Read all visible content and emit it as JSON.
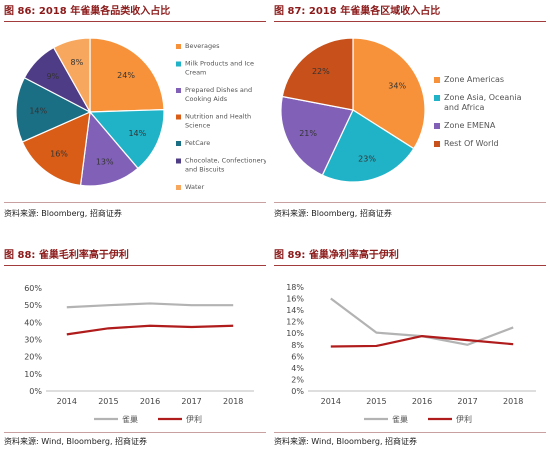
{
  "figures": [
    {
      "id": "fig86",
      "label": "图 86:",
      "title": "2018 年雀巢各品类收入占比",
      "source": "资料来源: Bloomberg, 招商证券"
    },
    {
      "id": "fig87",
      "label": "图 87:",
      "title": "2018 年雀巢各区域收入占比",
      "source": "资料来源: Bloomberg, 招商证券"
    },
    {
      "id": "fig88",
      "label": "图 88:",
      "title": "雀巢毛利率高于伊利",
      "source": "资料来源: Wind, Bloomberg, 招商证券"
    },
    {
      "id": "fig89",
      "label": "图 89:",
      "title": "雀巢净利率高于伊利",
      "source": "资料来源: Wind, Bloomberg, 招商证券"
    }
  ],
  "chart_data": [
    {
      "type": "pie",
      "categories": [
        "Beverages",
        "Milk Products and Ice Cream",
        "Prepared Dishes and Cooking Aids",
        "Nutrition and Health Science",
        "PetCare",
        "Chocolate, Confectionery and Biscuits",
        "Water"
      ],
      "legend_lines": [
        [
          "Beverages"
        ],
        [
          "Milk Products and Ice",
          "Cream"
        ],
        [
          "Prepared Dishes and",
          "Cooking Aids"
        ],
        [
          "Nutrition and Health",
          "Science"
        ],
        [
          "PetCare"
        ],
        [
          "Chocolate, Confectionery",
          "and Biscuits"
        ],
        [
          "Water"
        ]
      ],
      "values": [
        24,
        14,
        13,
        16,
        14,
        9,
        8
      ],
      "labels": [
        "24%",
        "14%",
        "13%",
        "16%",
        "14%",
        "9%",
        "8%"
      ],
      "colors": [
        "#f7923a",
        "#20b3c8",
        "#8161b8",
        "#d95d17",
        "#1a6f85",
        "#4f3c86",
        "#f8a85e"
      ],
      "legend_position": "right"
    },
    {
      "type": "pie",
      "categories": [
        "Zone Americas",
        "Zone Asia, Oceania and Africa",
        "Zone EMENA",
        "Rest Of World"
      ],
      "legend_lines": [
        [
          "Zone Americas"
        ],
        [
          "Zone Asia, Oceania",
          "and Africa"
        ],
        [
          "Zone EMENA"
        ],
        [
          "Rest Of World"
        ]
      ],
      "values": [
        34,
        23,
        21,
        22
      ],
      "labels": [
        "34%",
        "23%",
        "21%",
        "22%"
      ],
      "colors": [
        "#f7923a",
        "#20b3c8",
        "#8161b8",
        "#c8501a"
      ],
      "legend_position": "right"
    },
    {
      "type": "line",
      "x": [
        "2014",
        "2015",
        "2016",
        "2017",
        "2018"
      ],
      "series": [
        {
          "name": "雀巢",
          "values": [
            48.8,
            50.0,
            51.0,
            50.0,
            50.0
          ],
          "color": "#b3b3b3"
        },
        {
          "name": "伊利",
          "values": [
            33.0,
            36.5,
            38.0,
            37.3,
            38.0
          ],
          "color": "#b01c1c"
        }
      ],
      "yticks": [
        "0%",
        "10%",
        "20%",
        "30%",
        "40%",
        "50%",
        "60%"
      ],
      "ylim": [
        0,
        60
      ],
      "grid": false,
      "legend_position": "bottom"
    },
    {
      "type": "line",
      "x": [
        "2014",
        "2015",
        "2016",
        "2017",
        "2018"
      ],
      "series": [
        {
          "name": "雀巢",
          "values": [
            16.0,
            10.1,
            9.5,
            8.0,
            11.0
          ],
          "color": "#b3b3b3"
        },
        {
          "name": "伊利",
          "values": [
            7.7,
            7.8,
            9.5,
            8.8,
            8.1
          ],
          "color": "#b01c1c"
        }
      ],
      "yticks": [
        "0%",
        "2%",
        "4%",
        "6%",
        "8%",
        "10%",
        "12%",
        "14%",
        "16%",
        "18%"
      ],
      "ylim": [
        0,
        18
      ],
      "grid": false,
      "legend_position": "bottom"
    }
  ]
}
